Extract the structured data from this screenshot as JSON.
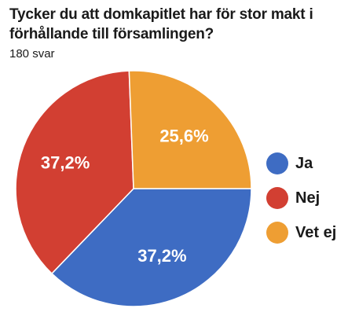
{
  "chart_data": {
    "type": "pie",
    "title": "Tycker du att domkapitlet har för stor makt i förhållande till församlingen?",
    "subtitle": "180 svar",
    "categories": [
      "Ja",
      "Nej",
      "Vet ej"
    ],
    "values": [
      37.2,
      37.2,
      25.6
    ],
    "value_labels": [
      "37,2%",
      "37,2%",
      "25,6%"
    ],
    "colors": [
      "#3e6cc3",
      "#d23f32",
      "#ee9e33"
    ],
    "legend": {
      "position": "right",
      "entries": [
        "Ja",
        "Nej",
        "Vet ej"
      ]
    }
  }
}
